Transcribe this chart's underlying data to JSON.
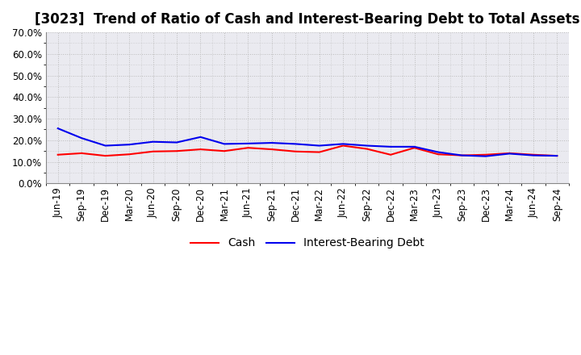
{
  "title": "[3023]  Trend of Ratio of Cash and Interest-Bearing Debt to Total Assets",
  "x_labels": [
    "Jun-19",
    "Sep-19",
    "Dec-19",
    "Mar-20",
    "Jun-20",
    "Sep-20",
    "Dec-20",
    "Mar-21",
    "Jun-21",
    "Sep-21",
    "Dec-21",
    "Mar-22",
    "Jun-22",
    "Sep-22",
    "Dec-22",
    "Mar-23",
    "Jun-23",
    "Sep-23",
    "Dec-23",
    "Mar-24",
    "Jun-24",
    "Sep-24"
  ],
  "cash": [
    0.133,
    0.14,
    0.128,
    0.135,
    0.148,
    0.15,
    0.158,
    0.15,
    0.165,
    0.158,
    0.148,
    0.145,
    0.175,
    0.16,
    0.133,
    0.165,
    0.135,
    0.13,
    0.133,
    0.14,
    0.133,
    0.128
  ],
  "debt": [
    0.255,
    0.21,
    0.175,
    0.18,
    0.193,
    0.19,
    0.215,
    0.183,
    0.185,
    0.188,
    0.183,
    0.175,
    0.183,
    0.175,
    0.17,
    0.17,
    0.145,
    0.13,
    0.126,
    0.138,
    0.13,
    0.128
  ],
  "cash_color": "#FF0000",
  "debt_color": "#0000EE",
  "ylim": [
    0.0,
    0.7
  ],
  "yticks": [
    0.0,
    0.1,
    0.2,
    0.3,
    0.4,
    0.5,
    0.6,
    0.7
  ],
  "plot_bg_color": "#EAEAF0",
  "fig_bg_color": "#FFFFFF",
  "grid_color": "#BBBBBB",
  "legend_cash": "Cash",
  "legend_debt": "Interest-Bearing Debt",
  "title_fontsize": 12,
  "label_fontsize": 8.5,
  "legend_fontsize": 10,
  "line_width": 1.5
}
